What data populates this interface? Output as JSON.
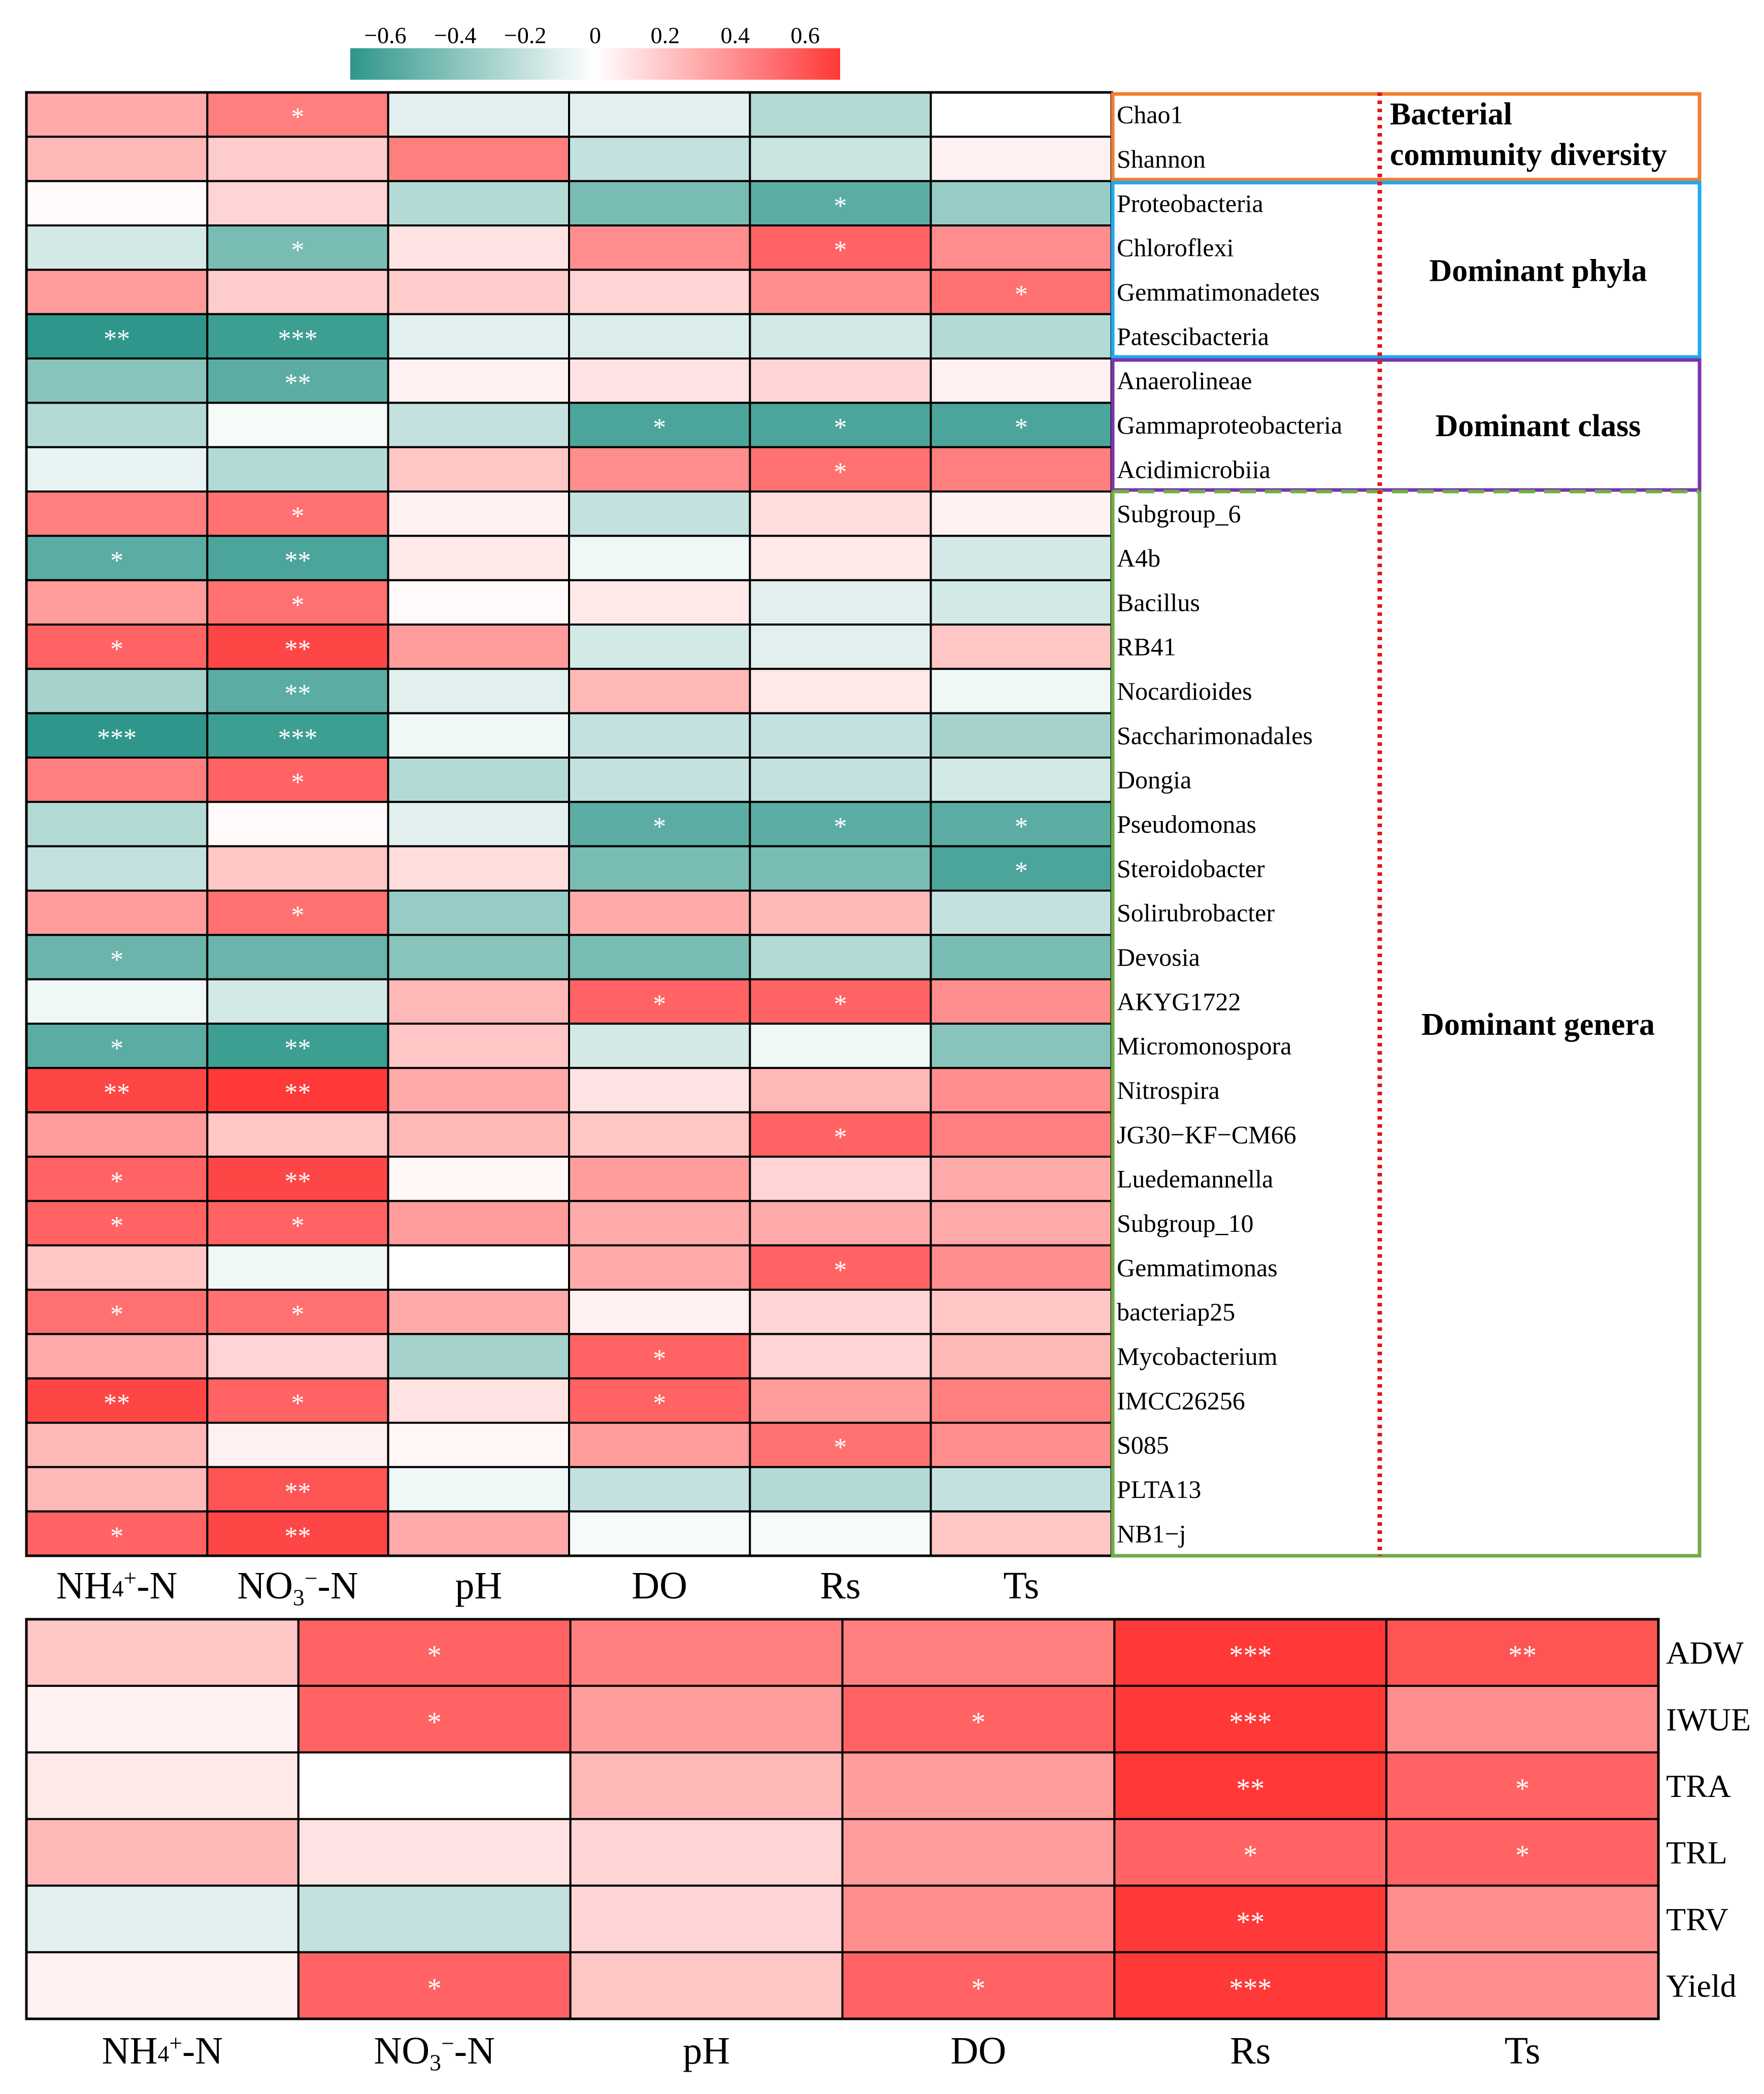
{
  "chart_data": [
    {
      "type": "heatmap",
      "id": "top",
      "title": "",
      "colorbar": {
        "ticks": [
          "−0.6",
          "−0.4",
          "−0.2",
          "0",
          "0.2",
          "0.4",
          "0.6"
        ],
        "tick_values": [
          -0.6,
          -0.4,
          -0.2,
          0,
          0.2,
          0.4,
          0.6
        ],
        "range": [
          -0.7,
          0.7
        ]
      },
      "colors": {
        "negative": "#2e968a",
        "zero": "#ffffff",
        "positive": "#ff3838"
      },
      "x_labels": [
        {
          "main": "NH",
          "sup": "4",
          "sup2": "+",
          "rest": "-N"
        },
        {
          "main": "NO",
          "sub": "3",
          "sup2": "−",
          "rest": "-N"
        },
        {
          "main": "pH"
        },
        {
          "main": "DO"
        },
        {
          "main": "Rs"
        },
        {
          "main": "Ts"
        }
      ],
      "rows": [
        {
          "name": "Chao1",
          "values": [
            0.3,
            0.45,
            -0.1,
            -0.1,
            -0.25,
            0.0
          ],
          "sig": [
            "",
            "*",
            "",
            "",
            "",
            ""
          ]
        },
        {
          "name": "Shannon",
          "values": [
            0.25,
            0.18,
            0.45,
            -0.2,
            -0.18,
            0.05
          ],
          "sig": [
            "",
            "",
            "",
            "",
            "",
            ""
          ]
        },
        {
          "name": "Proteobacteria",
          "values": [
            0.02,
            0.15,
            -0.25,
            -0.45,
            -0.55,
            -0.35
          ],
          "sig": [
            "",
            "",
            "",
            "",
            "*",
            ""
          ]
        },
        {
          "name": "Chloroflexi",
          "values": [
            -0.15,
            -0.45,
            0.1,
            0.4,
            0.55,
            0.4
          ],
          "sig": [
            "",
            "*",
            "",
            "",
            "*",
            ""
          ]
        },
        {
          "name": "Gemmatimonadetes",
          "values": [
            0.35,
            0.18,
            0.18,
            0.15,
            0.4,
            0.5
          ],
          "sig": [
            "",
            "",
            "",
            "",
            "",
            "*"
          ]
        },
        {
          "name": "Patescibacteria",
          "values": [
            -0.7,
            -0.65,
            -0.1,
            -0.12,
            -0.15,
            -0.25
          ],
          "sig": [
            "**",
            "***",
            "",
            "",
            "",
            ""
          ]
        },
        {
          "name": "Anaerolineae",
          "values": [
            -0.4,
            -0.55,
            0.05,
            0.1,
            0.15,
            0.05
          ],
          "sig": [
            "",
            "**",
            "",
            "",
            "",
            ""
          ]
        },
        {
          "name": "Gammaproteobacteria",
          "values": [
            -0.25,
            -0.03,
            -0.2,
            -0.6,
            -0.6,
            -0.6
          ],
          "sig": [
            "",
            "",
            "",
            "*",
            "*",
            "*"
          ]
        },
        {
          "name": "Acidimicrobiia",
          "values": [
            -0.08,
            -0.25,
            0.2,
            0.4,
            0.5,
            0.45
          ],
          "sig": [
            "",
            "",
            "",
            "",
            "*",
            ""
          ]
        },
        {
          "name": "Subgroup_6",
          "values": [
            0.45,
            0.5,
            0.05,
            -0.2,
            0.12,
            0.05
          ],
          "sig": [
            "",
            "*",
            "",
            "",
            "",
            ""
          ]
        },
        {
          "name": "A4b",
          "values": [
            -0.55,
            -0.6,
            0.08,
            -0.05,
            0.08,
            -0.15
          ],
          "sig": [
            "*",
            "**",
            "",
            "",
            "",
            ""
          ]
        },
        {
          "name": "Bacillus",
          "values": [
            0.35,
            0.5,
            0.02,
            0.08,
            -0.1,
            -0.15
          ],
          "sig": [
            "",
            "*",
            "",
            "",
            "",
            ""
          ]
        },
        {
          "name": "RB41",
          "values": [
            0.55,
            0.65,
            0.35,
            -0.15,
            -0.1,
            0.2
          ],
          "sig": [
            "*",
            "**",
            "",
            "",
            "",
            ""
          ]
        },
        {
          "name": "Nocardioides",
          "values": [
            -0.3,
            -0.55,
            -0.1,
            0.25,
            0.08,
            -0.05
          ],
          "sig": [
            "",
            "**",
            "",
            "",
            "",
            ""
          ]
        },
        {
          "name": "Saccharimonadales",
          "values": [
            -0.7,
            -0.65,
            -0.05,
            -0.2,
            -0.2,
            -0.3
          ],
          "sig": [
            "***",
            "***",
            "",
            "",
            "",
            ""
          ]
        },
        {
          "name": "Dongia",
          "values": [
            0.45,
            0.55,
            -0.25,
            -0.2,
            -0.2,
            -0.15
          ],
          "sig": [
            "",
            "*",
            "",
            "",
            "",
            ""
          ]
        },
        {
          "name": "Pseudomonas",
          "values": [
            -0.25,
            0.02,
            -0.1,
            -0.55,
            -0.55,
            -0.55
          ],
          "sig": [
            "",
            "",
            "",
            "*",
            "*",
            "*"
          ]
        },
        {
          "name": "Steroidobacter",
          "values": [
            -0.2,
            0.2,
            0.12,
            -0.45,
            -0.45,
            -0.6
          ],
          "sig": [
            "",
            "",
            "",
            "",
            "",
            "*"
          ]
        },
        {
          "name": "Solirubrobacter",
          "values": [
            0.35,
            0.5,
            -0.35,
            0.3,
            0.25,
            -0.2
          ],
          "sig": [
            "",
            "*",
            "",
            "",
            "",
            ""
          ]
        },
        {
          "name": "Devosia",
          "values": [
            -0.5,
            -0.5,
            -0.4,
            -0.45,
            -0.25,
            -0.45
          ],
          "sig": [
            "*",
            "",
            "",
            "",
            "",
            ""
          ]
        },
        {
          "name": "AKYG1722",
          "values": [
            -0.05,
            -0.15,
            0.25,
            0.55,
            0.55,
            0.4
          ],
          "sig": [
            "",
            "",
            "",
            "*",
            "*",
            ""
          ]
        },
        {
          "name": "Micromonospora",
          "values": [
            -0.55,
            -0.65,
            0.2,
            -0.15,
            -0.05,
            -0.4
          ],
          "sig": [
            "*",
            "**",
            "",
            "",
            "",
            ""
          ]
        },
        {
          "name": "Nitrospira",
          "values": [
            0.65,
            0.7,
            0.3,
            0.1,
            0.25,
            0.4
          ],
          "sig": [
            "**",
            "**",
            "",
            "",
            "",
            ""
          ]
        },
        {
          "name": "JG30−KF−CM66",
          "values": [
            0.35,
            0.2,
            0.25,
            0.2,
            0.55,
            0.45
          ],
          "sig": [
            "",
            "",
            "",
            "",
            "*",
            ""
          ]
        },
        {
          "name": "Luedemannella",
          "values": [
            0.55,
            0.65,
            0.03,
            0.35,
            0.15,
            0.3
          ],
          "sig": [
            "*",
            "**",
            "",
            "",
            "",
            ""
          ]
        },
        {
          "name": "Subgroup_10",
          "values": [
            0.55,
            0.55,
            0.35,
            0.3,
            0.3,
            0.3
          ],
          "sig": [
            "*",
            "*",
            "",
            "",
            "",
            ""
          ]
        },
        {
          "name": "Gemmatimonas",
          "values": [
            0.2,
            -0.05,
            0.0,
            0.3,
            0.55,
            0.4
          ],
          "sig": [
            "",
            "",
            "",
            "",
            "*",
            ""
          ]
        },
        {
          "name": "bacteriap25",
          "values": [
            0.5,
            0.5,
            0.3,
            0.05,
            0.15,
            0.2
          ],
          "sig": [
            "*",
            "*",
            "",
            "",
            "",
            ""
          ]
        },
        {
          "name": "Mycobacterium",
          "values": [
            0.3,
            0.15,
            -0.3,
            0.55,
            0.15,
            0.25
          ],
          "sig": [
            "",
            "",
            "",
            "*",
            "",
            ""
          ]
        },
        {
          "name": "IMCC26256",
          "values": [
            0.65,
            0.55,
            0.1,
            0.55,
            0.35,
            0.45
          ],
          "sig": [
            "**",
            "*",
            "",
            "*",
            "",
            ""
          ]
        },
        {
          "name": "S085",
          "values": [
            0.25,
            0.05,
            0.03,
            0.35,
            0.5,
            0.4
          ],
          "sig": [
            "",
            "",
            "",
            "",
            "*",
            ""
          ]
        },
        {
          "name": "PLTA13",
          "values": [
            0.25,
            0.6,
            -0.05,
            -0.2,
            -0.25,
            -0.2
          ],
          "sig": [
            "",
            "**",
            "",
            "",
            "",
            ""
          ]
        },
        {
          "name": "NB1−j",
          "values": [
            0.55,
            0.65,
            0.3,
            -0.03,
            -0.03,
            0.2
          ],
          "sig": [
            "*",
            "**",
            "",
            "",
            "",
            ""
          ]
        }
      ],
      "groups": [
        {
          "label_lines": [
            "Bacterial",
            "community diversity"
          ],
          "rows": [
            0,
            1
          ],
          "color": "#f07f2e",
          "style": "solid",
          "label_align": "left"
        },
        {
          "label_lines": [
            "Dominant phyla"
          ],
          "rows": [
            2,
            5
          ],
          "color": "#1eaaf0",
          "style": "solid",
          "label_align": "center"
        },
        {
          "label_lines": [
            "Dominant class"
          ],
          "rows": [
            6,
            8
          ],
          "color": "#7a35a8",
          "style": "solid",
          "label_align": "center"
        },
        {
          "label_lines": [
            "Dominant genera"
          ],
          "rows": [
            9,
            32
          ],
          "color": "#70ad47",
          "style": "dashed-top",
          "label_align": "center"
        }
      ]
    },
    {
      "type": "heatmap",
      "id": "bottom",
      "title": "",
      "x_labels": [
        {
          "main": "NH",
          "sup": "4",
          "sup2": "+",
          "rest": "-N"
        },
        {
          "main": "NO",
          "sub": "3",
          "sup2": "−",
          "rest": "-N"
        },
        {
          "main": "pH"
        },
        {
          "main": "DO"
        },
        {
          "main": "Rs"
        },
        {
          "main": "Ts"
        }
      ],
      "rows": [
        {
          "name": "ADW",
          "values": [
            0.2,
            0.55,
            0.45,
            0.45,
            0.7,
            0.6
          ],
          "sig": [
            "",
            "*",
            "",
            "",
            "***",
            "**"
          ]
        },
        {
          "name": "IWUE",
          "values": [
            0.05,
            0.55,
            0.35,
            0.55,
            0.7,
            0.4
          ],
          "sig": [
            "",
            "*",
            "",
            "*",
            "***",
            ""
          ]
        },
        {
          "name": "TRA",
          "values": [
            0.08,
            0.0,
            0.25,
            0.35,
            0.7,
            0.55
          ],
          "sig": [
            "",
            "",
            "",
            "",
            "**",
            "*"
          ]
        },
        {
          "name": "TRL",
          "values": [
            0.25,
            0.1,
            0.15,
            0.35,
            0.55,
            0.55
          ],
          "sig": [
            "",
            "",
            "",
            "",
            "*",
            "*"
          ]
        },
        {
          "name": "TRV",
          "values": [
            -0.1,
            -0.2,
            0.15,
            0.4,
            0.7,
            0.4
          ],
          "sig": [
            "",
            "",
            "",
            "",
            "**",
            ""
          ]
        },
        {
          "name": "Yield",
          "values": [
            0.05,
            0.55,
            0.2,
            0.55,
            0.7,
            0.4
          ],
          "sig": [
            "",
            "*",
            "",
            "*",
            "***",
            ""
          ]
        }
      ]
    }
  ]
}
